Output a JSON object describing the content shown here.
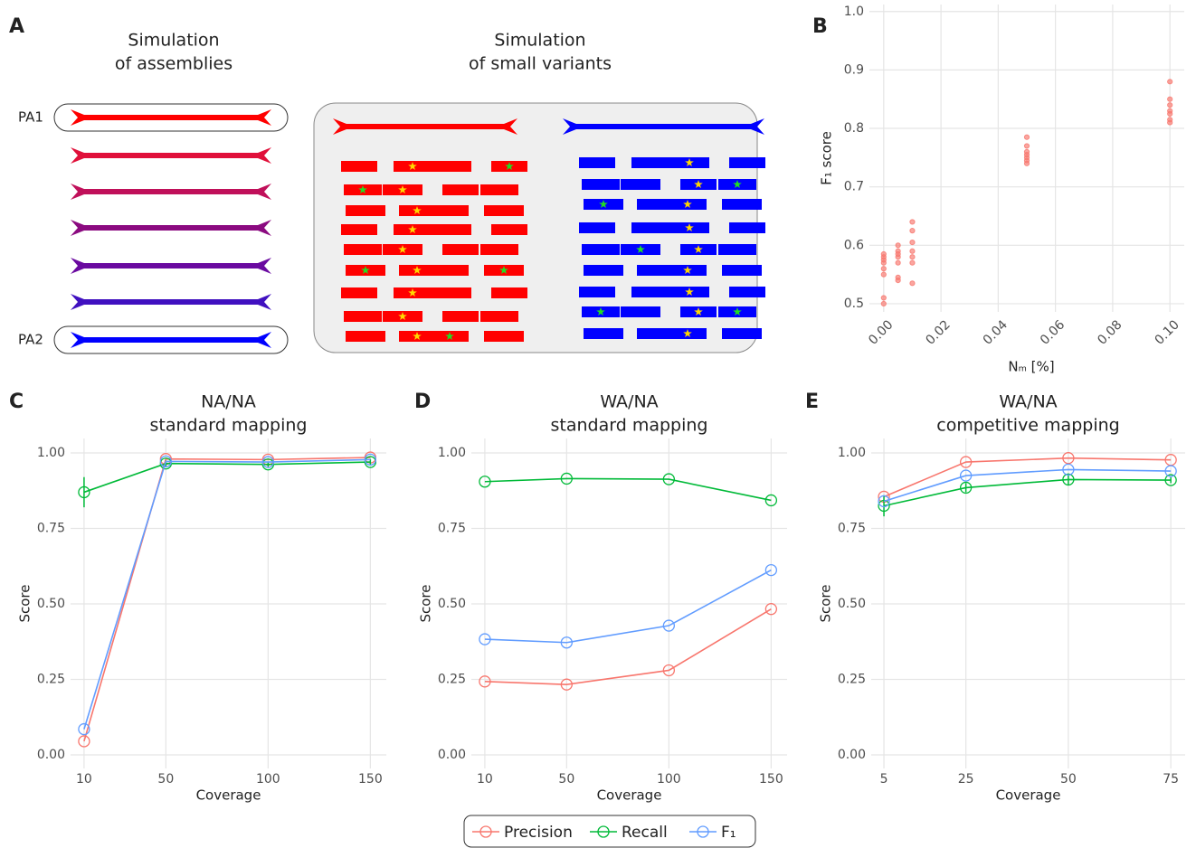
{
  "diagram": {
    "panel": "A",
    "titles": [
      [
        "Simulation",
        "of assemblies"
      ],
      [
        "Simulation",
        "of small variants"
      ]
    ],
    "labels": [
      "PA1",
      "PA2"
    ]
  },
  "chart_data": [
    {
      "panel": "B",
      "type": "scatter",
      "xlabel": "Nₘ  [%]",
      "ylabel": "F₁ score",
      "color": "#F8766D",
      "x": [
        0,
        0,
        0,
        0,
        0,
        0,
        0,
        0,
        0.005,
        0.005,
        0.005,
        0.005,
        0.005,
        0.005,
        0.005,
        0.01,
        0.01,
        0.01,
        0.01,
        0.01,
        0.01,
        0.01,
        0.05,
        0.05,
        0.05,
        0.05,
        0.05,
        0.05,
        0.05,
        0.1,
        0.1,
        0.1,
        0.1,
        0.1,
        0.1,
        0.1
      ],
      "values": [
        0.5,
        0.51,
        0.55,
        0.56,
        0.57,
        0.575,
        0.58,
        0.585,
        0.54,
        0.545,
        0.57,
        0.58,
        0.585,
        0.59,
        0.6,
        0.535,
        0.57,
        0.58,
        0.59,
        0.605,
        0.625,
        0.64,
        0.74,
        0.745,
        0.75,
        0.755,
        0.76,
        0.77,
        0.785,
        0.81,
        0.815,
        0.825,
        0.83,
        0.84,
        0.85,
        0.88
      ],
      "xlim": [
        -0.005,
        0.105
      ],
      "ylim": [
        0.486,
        1.012
      ],
      "xticks": [
        {
          "value": 0,
          "label": "0.00"
        },
        {
          "value": 0.02,
          "label": "0.02"
        },
        {
          "value": 0.04,
          "label": "0.04"
        },
        {
          "value": 0.06,
          "label": "0.06"
        },
        {
          "value": 0.08,
          "label": "0.08"
        },
        {
          "value": 0.1,
          "label": "0.10"
        }
      ],
      "yticks": [
        0.5,
        0.6,
        0.7,
        0.8,
        0.9,
        {
          "value": 1,
          "label": "1.0"
        }
      ],
      "grid": true
    },
    {
      "panel": "C",
      "type": "line",
      "title": [
        "NA/NA",
        "standard mapping"
      ],
      "xlabel": "Coverage",
      "ylabel": "Score",
      "x": [
        10,
        50,
        100,
        150
      ],
      "xlim": [
        3.4,
        157.8
      ],
      "ylim": [
        -0.045,
        1.048
      ],
      "xticks": [
        10,
        50,
        100,
        150
      ],
      "yticks": [
        {
          "value": 0,
          "label": "0.00"
        },
        0.25,
        {
          "value": 0.5,
          "label": "0.50"
        },
        0.75,
        {
          "value": 1,
          "label": "1.00"
        }
      ],
      "grid": true,
      "series": [
        {
          "name": "Precision",
          "color": "#F8766D",
          "values": [
            0.045,
            0.98,
            0.978,
            0.985
          ]
        },
        {
          "name": "Recall",
          "color": "#00BA38",
          "values": [
            0.87,
            0.965,
            0.962,
            0.97
          ],
          "errors": [
            0.05,
            0.01,
            0.01,
            0.01
          ]
        },
        {
          "name": "F₁",
          "color": "#619CFF",
          "values": [
            0.085,
            0.972,
            0.97,
            0.978
          ]
        }
      ]
    },
    {
      "panel": "D",
      "type": "line",
      "title": [
        "WA/NA",
        "standard mapping"
      ],
      "xlabel": "Coverage",
      "ylabel": "Score",
      "x": [
        10,
        50,
        100,
        150
      ],
      "xlim": [
        3.4,
        157.8
      ],
      "ylim": [
        -0.045,
        1.048
      ],
      "xticks": [
        10,
        50,
        100,
        150
      ],
      "yticks": [
        {
          "value": 0,
          "label": "0.00"
        },
        0.25,
        {
          "value": 0.5,
          "label": "0.50"
        },
        0.75,
        {
          "value": 1,
          "label": "1.00"
        }
      ],
      "grid": true,
      "series": [
        {
          "name": "Precision",
          "color": "#F8766D",
          "values": [
            0.243,
            0.233,
            0.28,
            0.483
          ]
        },
        {
          "name": "Recall",
          "color": "#00BA38",
          "values": [
            0.905,
            0.915,
            0.913,
            0.843
          ]
        },
        {
          "name": "F₁",
          "color": "#619CFF",
          "values": [
            0.383,
            0.372,
            0.428,
            0.612
          ]
        }
      ]
    },
    {
      "panel": "E",
      "type": "line",
      "title": [
        "WA/NA",
        "competitive mapping"
      ],
      "xlabel": "Coverage",
      "ylabel": "Score",
      "x": [
        5,
        25,
        50,
        75
      ],
      "xlim": [
        1.9,
        78.5
      ],
      "ylim": [
        -0.045,
        1.048
      ],
      "xticks": [
        5,
        25,
        50,
        75
      ],
      "yticks": [
        {
          "value": 0,
          "label": "0.00"
        },
        0.25,
        {
          "value": 0.5,
          "label": "0.50"
        },
        0.75,
        {
          "value": 1,
          "label": "1.00"
        }
      ],
      "grid": true,
      "series": [
        {
          "name": "Precision",
          "color": "#F8766D",
          "values": [
            0.855,
            0.97,
            0.983,
            0.977
          ]
        },
        {
          "name": "Recall",
          "color": "#00BA38",
          "values": [
            0.825,
            0.885,
            0.912,
            0.91
          ],
          "errors": [
            0.035,
            0.015,
            0.02,
            0.01
          ]
        },
        {
          "name": "F₁",
          "color": "#619CFF",
          "values": [
            0.84,
            0.925,
            0.945,
            0.94
          ]
        }
      ]
    }
  ]
}
